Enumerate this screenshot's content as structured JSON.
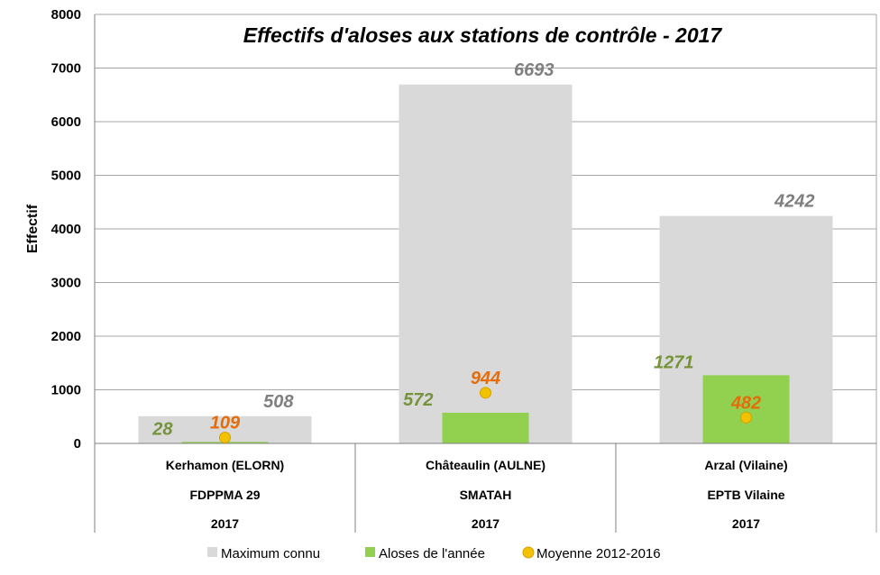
{
  "colors": {
    "max": "#d9d9d9",
    "year": "#92d050",
    "avg": "#f2c200",
    "max_label": "#7f7f7f",
    "year_label": "#76933c",
    "avg_label": "#e46c0a"
  },
  "chart_data": {
    "type": "bar",
    "title": "Effectifs d'aloses aux stations de contrôle - 2017",
    "ylabel": "Effectif",
    "xlabel": "",
    "ylim": [
      0,
      8000
    ],
    "yticks": [
      0,
      1000,
      2000,
      3000,
      4000,
      5000,
      6000,
      7000,
      8000
    ],
    "grid": true,
    "legend_position": "bottom",
    "categories": [
      {
        "lines": [
          "Kerhamon (ELORN)",
          "FDPPMA 29",
          "2017"
        ]
      },
      {
        "lines": [
          "Châteaulin (AULNE)",
          "SMATAH",
          "2017"
        ]
      },
      {
        "lines": [
          "Arzal (Vilaine)",
          "EPTB Vilaine",
          "2017"
        ]
      }
    ],
    "series": [
      {
        "name": "Maximum connu",
        "type": "bar",
        "values": [
          508,
          6693,
          4242
        ]
      },
      {
        "name": "Aloses de l'année",
        "type": "bar",
        "values": [
          28,
          572,
          1271
        ]
      },
      {
        "name": "Moyenne 2012-2016",
        "type": "point",
        "values": [
          109,
          944,
          482
        ]
      }
    ]
  }
}
